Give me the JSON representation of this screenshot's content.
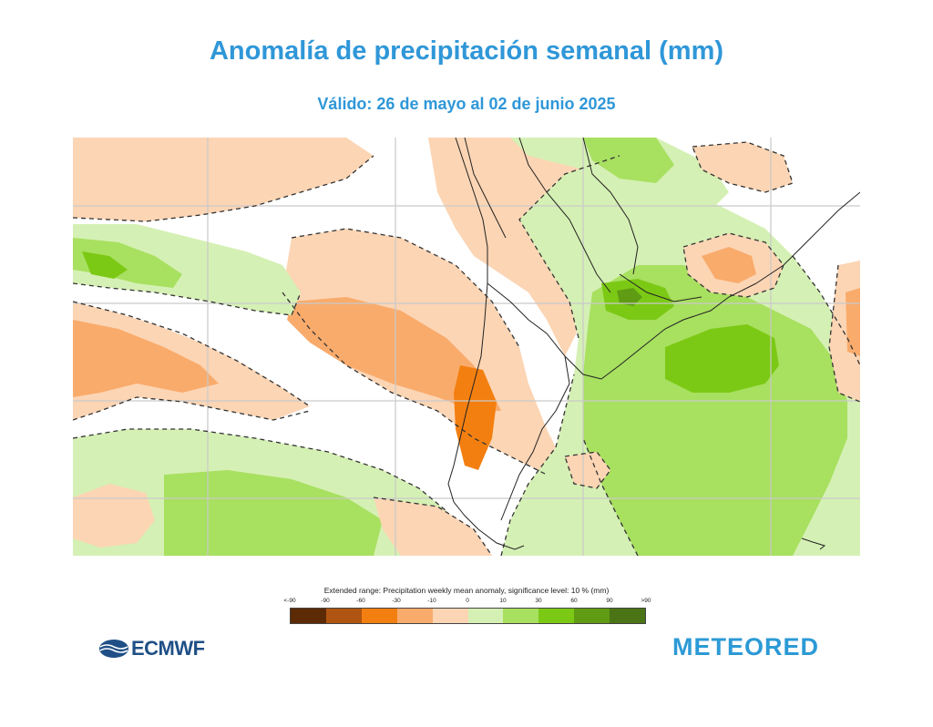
{
  "header": {
    "title": "Anomalía de precipitación semanal (mm)",
    "subtitle": "Válido: 26 de mayo al 02 de junio 2025"
  },
  "legend": {
    "caption": "Extended range: Precipitation weekly mean anomaly, significance level: 10 % (mm)",
    "ticks": [
      "<-90",
      "-90",
      "-60",
      "-30",
      "-10",
      "0",
      "10",
      "30",
      "60",
      "90",
      ">90"
    ],
    "colors": [
      "#5c2a05",
      "#b05511",
      "#f37f10",
      "#f9ab6c",
      "#fcd5b4",
      "#ffffff",
      "#d5f0b4",
      "#a8e060",
      "#7cc915",
      "#5f9c13",
      "#4a7415"
    ]
  },
  "logos": {
    "left": "ECMWF",
    "right_part1": "METE",
    "right_part2": "RED",
    "right_o": "O"
  },
  "map": {
    "region": "southern South America",
    "colors": {
      "strong_dry": "#f9ab6c",
      "very_dry": "#f37f10",
      "dry": "#fcd5b4",
      "wet": "#d5f0b4",
      "wetter": "#a8e060",
      "wettest": "#7cc915",
      "very_wet": "#5f9c13",
      "coast": "#222222",
      "grid": "#c9c9c9"
    }
  }
}
